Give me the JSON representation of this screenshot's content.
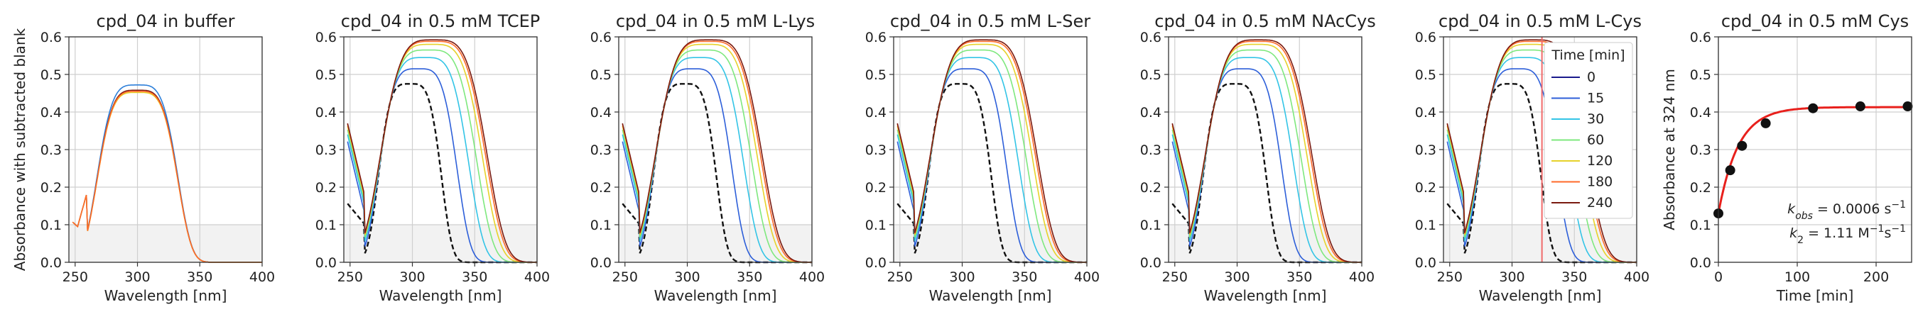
{
  "figure": {
    "wavelength_label": "Wavelength [nm]",
    "spectrum_ylabel": "Absorbance with subtracted blank",
    "kinetics_ylabel": "Absorbance at 324 nm",
    "kinetics_xlabel": "Time [min]"
  },
  "colors": {
    "0": "#1a1a8c",
    "15": "#2d5fd9",
    "30": "#33c4e6",
    "60": "#7ee87e",
    "120": "#e6d22a",
    "180": "#ff6a2a",
    "240": "#7a1a10",
    "fit": "#e8201c",
    "marker_line": "#f06a6a",
    "shade": "#f2f2f2",
    "grid": "#cfcfcf",
    "buffer_blue": "#2d7fd9"
  },
  "legend": {
    "title": "Time [min]",
    "entries": [
      "0",
      "15",
      "30",
      "60",
      "120",
      "180",
      "240"
    ]
  },
  "chart_data": [
    {
      "type": "line",
      "title": "cpd_04 in buffer",
      "xlabel": "Wavelength [nm]",
      "ylabel": "Absorbance with subtracted blank",
      "xlim": [
        245,
        400
      ],
      "ylim": [
        0,
        0.6
      ],
      "xticks": [
        250,
        300,
        350,
        400
      ],
      "yticks": [
        0.0,
        0.1,
        0.2,
        0.3,
        0.4,
        0.5,
        0.6
      ],
      "grid": true,
      "shaded_band": [
        0,
        0.1
      ],
      "series": [
        {
          "key": "buffer_blue",
          "peak": 0.472
        },
        {
          "key": "240",
          "peak": 0.458
        },
        {
          "key": "120",
          "peak": 0.452
        },
        {
          "key": "180",
          "peak": 0.455
        }
      ]
    },
    {
      "type": "line",
      "title": "cpd_04 in 0.5 mM TCEP",
      "xlabel": "Wavelength [nm]",
      "xlim": [
        245,
        400
      ],
      "ylim": [
        0,
        0.6
      ],
      "xticks": [
        250,
        300,
        350,
        400
      ],
      "yticks": [
        0.0,
        0.1,
        0.2,
        0.3,
        0.4,
        0.5,
        0.6
      ],
      "grid": true,
      "shaded_band": [
        0,
        0.1
      ],
      "series": [
        {
          "key": "0",
          "peak": 0.475,
          "dashed": true
        },
        {
          "key": "15",
          "peak": 0.515
        },
        {
          "key": "30",
          "peak": 0.545
        },
        {
          "key": "60",
          "peak": 0.565
        },
        {
          "key": "120",
          "peak": 0.58
        },
        {
          "key": "180",
          "peak": 0.588
        },
        {
          "key": "240",
          "peak": 0.592
        }
      ]
    },
    {
      "type": "line",
      "title": "cpd_04 in 0.5 mM L-Lys",
      "xlabel": "Wavelength [nm]",
      "xlim": [
        245,
        400
      ],
      "ylim": [
        0,
        0.6
      ],
      "xticks": [
        250,
        300,
        350,
        400
      ],
      "yticks": [
        0.0,
        0.1,
        0.2,
        0.3,
        0.4,
        0.5,
        0.6
      ],
      "grid": true,
      "shaded_band": [
        0,
        0.1
      ],
      "series": [
        {
          "key": "0",
          "peak": 0.475,
          "dashed": true
        },
        {
          "key": "15",
          "peak": 0.515
        },
        {
          "key": "30",
          "peak": 0.545
        },
        {
          "key": "60",
          "peak": 0.565
        },
        {
          "key": "120",
          "peak": 0.58
        },
        {
          "key": "180",
          "peak": 0.588
        },
        {
          "key": "240",
          "peak": 0.592
        }
      ]
    },
    {
      "type": "line",
      "title": "cpd_04 in 0.5 mM L-Ser",
      "xlabel": "Wavelength [nm]",
      "xlim": [
        245,
        400
      ],
      "ylim": [
        0,
        0.6
      ],
      "xticks": [
        250,
        300,
        350,
        400
      ],
      "yticks": [
        0.0,
        0.1,
        0.2,
        0.3,
        0.4,
        0.5,
        0.6
      ],
      "grid": true,
      "shaded_band": [
        0,
        0.1
      ],
      "series": [
        {
          "key": "0",
          "peak": 0.475,
          "dashed": true
        },
        {
          "key": "15",
          "peak": 0.515
        },
        {
          "key": "30",
          "peak": 0.545
        },
        {
          "key": "60",
          "peak": 0.565
        },
        {
          "key": "120",
          "peak": 0.58
        },
        {
          "key": "180",
          "peak": 0.588
        },
        {
          "key": "240",
          "peak": 0.592
        }
      ]
    },
    {
      "type": "line",
      "title": "cpd_04 in 0.5 mM NAcCys",
      "xlabel": "Wavelength [nm]",
      "xlim": [
        245,
        400
      ],
      "ylim": [
        0,
        0.6
      ],
      "xticks": [
        250,
        300,
        350,
        400
      ],
      "yticks": [
        0.0,
        0.1,
        0.2,
        0.3,
        0.4,
        0.5,
        0.6
      ],
      "grid": true,
      "shaded_band": [
        0,
        0.1
      ],
      "series": [
        {
          "key": "0",
          "peak": 0.475,
          "dashed": true
        },
        {
          "key": "15",
          "peak": 0.515
        },
        {
          "key": "30",
          "peak": 0.545
        },
        {
          "key": "60",
          "peak": 0.565
        },
        {
          "key": "120",
          "peak": 0.58
        },
        {
          "key": "180",
          "peak": 0.588
        },
        {
          "key": "240",
          "peak": 0.592
        }
      ]
    },
    {
      "type": "line",
      "title": "cpd_04 in 0.5 mM L-Cys",
      "xlabel": "Wavelength [nm]",
      "xlim": [
        245,
        400
      ],
      "ylim": [
        0,
        0.6
      ],
      "xticks": [
        250,
        300,
        350,
        400
      ],
      "yticks": [
        0.0,
        0.1,
        0.2,
        0.3,
        0.4,
        0.5,
        0.6
      ],
      "grid": true,
      "shaded_band": [
        0,
        0.1
      ],
      "vline": 324,
      "legend_position": "top-right",
      "series": [
        {
          "key": "0",
          "peak": 0.475,
          "dashed": true
        },
        {
          "key": "15",
          "peak": 0.515
        },
        {
          "key": "30",
          "peak": 0.545
        },
        {
          "key": "60",
          "peak": 0.565
        },
        {
          "key": "120",
          "peak": 0.58
        },
        {
          "key": "180",
          "peak": 0.588
        },
        {
          "key": "240",
          "peak": 0.592
        }
      ]
    },
    {
      "type": "scatter",
      "title": "cpd_04 in 0.5 mM Cys",
      "xlabel": "Time [min]",
      "ylabel": "Absorbance at 324 nm",
      "xlim": [
        0,
        245
      ],
      "ylim": [
        0,
        0.6
      ],
      "xticks": [
        0,
        100,
        200
      ],
      "yticks": [
        0.0,
        0.1,
        0.2,
        0.3,
        0.4,
        0.5,
        0.6
      ],
      "grid": true,
      "points": {
        "x": [
          0,
          15,
          30,
          60,
          120,
          180,
          240
        ],
        "y": [
          0.13,
          0.245,
          0.31,
          0.37,
          0.41,
          0.415,
          0.415
        ]
      },
      "fit": {
        "plateau": 0.413,
        "start": 0.13,
        "k": 0.04
      },
      "annotations": [
        {
          "k": "k",
          "sub": "obs",
          "rest": " = 0.0006 s",
          "sup": "−1"
        },
        {
          "k": "k",
          "sub": "2",
          "rest": " = 1.11 M",
          "sup": "−1",
          "rest2": "s",
          "sup2": "−1"
        }
      ]
    }
  ]
}
